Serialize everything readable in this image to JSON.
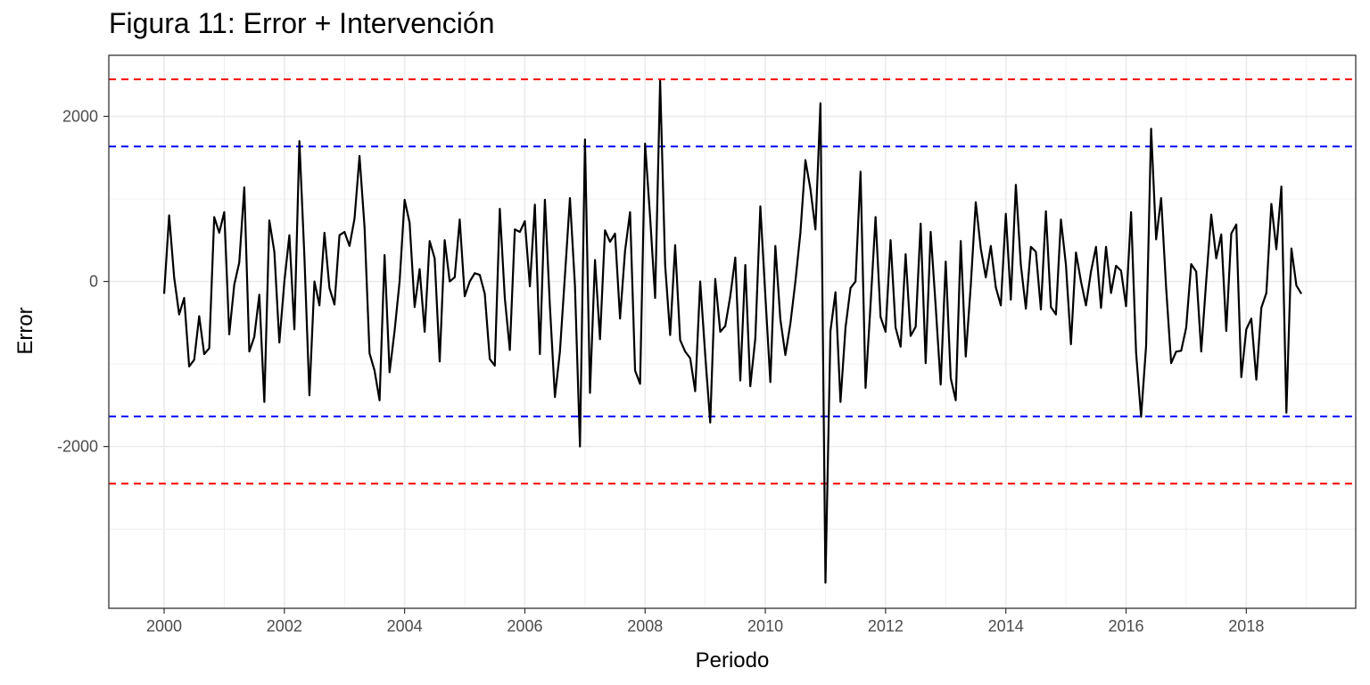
{
  "chart_data": {
    "type": "line",
    "title": "Figura 11: Error + Intervención",
    "xlabel": "Periodo",
    "ylabel": "Error",
    "xlim": [
      1999.08,
      2019.82
    ],
    "ylim": [
      -3960,
      2740
    ],
    "x_ticks": [
      2000,
      2002,
      2004,
      2006,
      2008,
      2010,
      2012,
      2014,
      2016,
      2018
    ],
    "x_tick_labels": [
      "2000",
      "2002",
      "2004",
      "2006",
      "2008",
      "2010",
      "2012",
      "2014",
      "2016",
      "2018"
    ],
    "y_ticks": [
      -2000,
      0,
      2000
    ],
    "y_tick_labels": [
      "-2000",
      "0",
      "2000"
    ],
    "grid": true,
    "series": [
      {
        "color": "#000000",
        "x_start": 2000,
        "x_step": 0.0833333,
        "values": [
          -150,
          800,
          50,
          -400,
          -200,
          -1030,
          -950,
          -420,
          -880,
          -810,
          780,
          590,
          840,
          -640,
          -40,
          230,
          1140,
          -850,
          -670,
          -160,
          -1460,
          740,
          360,
          -740,
          0,
          560,
          -580,
          1700,
          300,
          -1380,
          0,
          -290,
          590,
          -80,
          -280,
          560,
          600,
          430,
          760,
          1520,
          660,
          -870,
          -1080,
          -1440,
          320,
          -1100,
          -600,
          0,
          990,
          710,
          -310,
          150,
          -610,
          490,
          280,
          -970,
          500,
          0,
          50,
          750,
          -180,
          0,
          100,
          80,
          -150,
          -940,
          -1020,
          880,
          -200,
          -830,
          630,
          600,
          730,
          -60,
          930,
          -880,
          990,
          -300,
          -1400,
          -850,
          70,
          1010,
          -50,
          -2000,
          1720,
          -1350,
          260,
          -700,
          620,
          480,
          580,
          -450,
          370,
          840,
          -1080,
          -1240,
          1670,
          780,
          -200,
          2430,
          200,
          -650,
          440,
          -710,
          -850,
          -930,
          -1330,
          0,
          -890,
          -1710,
          30,
          -610,
          -540,
          -180,
          290,
          -1200,
          200,
          -1270,
          -690,
          910,
          -170,
          -1220,
          430,
          -460,
          -890,
          -510,
          0,
          590,
          1470,
          1120,
          630,
          2160,
          -3650,
          -600,
          -130,
          -1460,
          -560,
          -80,
          0,
          1330,
          -1290,
          -280,
          780,
          -430,
          -610,
          500,
          -560,
          -790,
          330,
          -660,
          -550,
          700,
          -990,
          600,
          -300,
          -1250,
          240,
          -1170,
          -1440,
          490,
          -910,
          -50,
          960,
          400,
          50,
          430,
          -70,
          -290,
          820,
          -220,
          1170,
          200,
          -330,
          420,
          360,
          -340,
          850,
          -310,
          -400,
          750,
          200,
          -760,
          350,
          0,
          -290,
          120,
          420,
          -320,
          420,
          -140,
          190,
          130,
          -300,
          840,
          -860,
          -1640,
          -780,
          1850,
          510,
          1010,
          -80,
          -990,
          -850,
          -840,
          -560,
          210,
          120,
          -850,
          10,
          810,
          280,
          570,
          -600,
          580,
          690,
          -1160,
          -580,
          -450,
          -1190,
          -320,
          -140,
          940,
          390,
          1150,
          -1590,
          400,
          -50,
          -150
        ]
      }
    ],
    "reference_lines": [
      {
        "y": 2450,
        "color": "#ff0000",
        "style": "dashed"
      },
      {
        "y": 1635,
        "color": "#0000ff",
        "style": "dashed"
      },
      {
        "y": -1635,
        "color": "#0000ff",
        "style": "dashed"
      },
      {
        "y": -2450,
        "color": "#ff0000",
        "style": "dashed"
      }
    ]
  }
}
